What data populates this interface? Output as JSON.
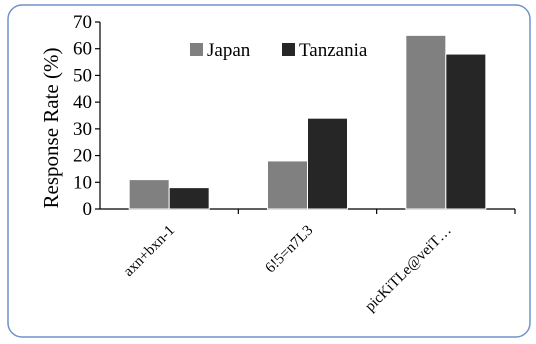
{
  "chart_data": {
    "type": "bar",
    "categories": [
      "axn+bxn-1",
      "6!5=n7L3",
      "picKiTLe@veiT…"
    ],
    "series": [
      {
        "name": "Japan",
        "values": [
          11,
          18,
          65
        ],
        "color": "#808080"
      },
      {
        "name": "Tanzania",
        "values": [
          8,
          34,
          58
        ],
        "color": "#262626"
      }
    ],
    "ylabel": "Response Rate (%)",
    "xlabel": "",
    "ylim": [
      0,
      70
    ],
    "yticks": [
      0,
      10,
      20,
      30,
      40,
      50,
      60,
      70
    ],
    "legend_position": "top",
    "grid": false,
    "frame_color": "#6f93c8"
  }
}
